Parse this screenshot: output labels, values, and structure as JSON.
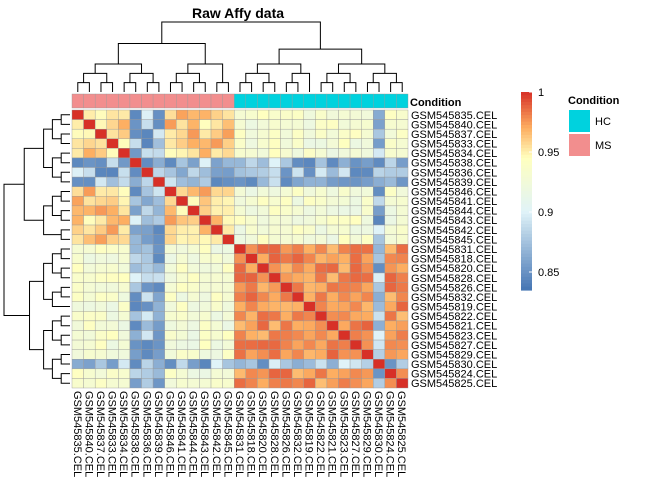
{
  "chart_data": {
    "type": "heatmap",
    "title": "Raw Affy data",
    "samples": [
      "GSM545835.CEL",
      "GSM545840.CEL",
      "GSM545837.CEL",
      "GSM545833.CEL",
      "GSM545834.CEL",
      "GSM545838.CEL",
      "GSM545836.CEL",
      "GSM545839.CEL",
      "GSM545846.CEL",
      "GSM545841.CEL",
      "GSM545844.CEL",
      "GSM545843.CEL",
      "GSM545842.CEL",
      "GSM545845.CEL",
      "GSM545831.CEL",
      "GSM545818.CEL",
      "GSM545820.CEL",
      "GSM545828.CEL",
      "GSM545826.CEL",
      "GSM545832.CEL",
      "GSM545819.CEL",
      "GSM545822.CEL",
      "GSM545821.CEL",
      "GSM545823.CEL",
      "GSM545827.CEL",
      "GSM545829.CEL",
      "GSM545830.CEL",
      "GSM545824.CEL",
      "GSM545825.CEL"
    ],
    "condition": [
      "MS",
      "MS",
      "MS",
      "MS",
      "MS",
      "MS",
      "MS",
      "MS",
      "MS",
      "MS",
      "MS",
      "MS",
      "MS",
      "MS",
      "HC",
      "HC",
      "HC",
      "HC",
      "HC",
      "HC",
      "HC",
      "HC",
      "HC",
      "HC",
      "HC",
      "HC",
      "HC",
      "HC",
      "HC"
    ],
    "group_value_range": {
      "MS-MS": [
        0.945,
        0.975
      ],
      "HC-HC": [
        0.965,
        0.988
      ],
      "MS-HC": [
        0.915,
        0.945
      ],
      "low_samples": [
        "GSM545838.CEL",
        "GSM545836.CEL",
        "GSM545839.CEL",
        "GSM545830.CEL"
      ],
      "low_pair_range": [
        0.842,
        0.9
      ]
    },
    "colorbar": {
      "min": 0.835,
      "max": 1,
      "ticks": [
        0.85,
        0.9,
        0.95,
        1
      ],
      "tick_labels": [
        "0.85",
        "0.9",
        "0.95",
        "1"
      ]
    },
    "colors": {
      "low": "#4575b4",
      "mid_low": "#e0f3f8",
      "mid": "#ffffbf",
      "mid_high": "#fdae61",
      "high": "#d73027"
    },
    "annotation": {
      "label": "Condition",
      "legend_title": "Condition",
      "levels": [
        {
          "name": "HC",
          "color": "#00d2de"
        },
        {
          "name": "MS",
          "color": "#f28e8e"
        }
      ]
    }
  }
}
